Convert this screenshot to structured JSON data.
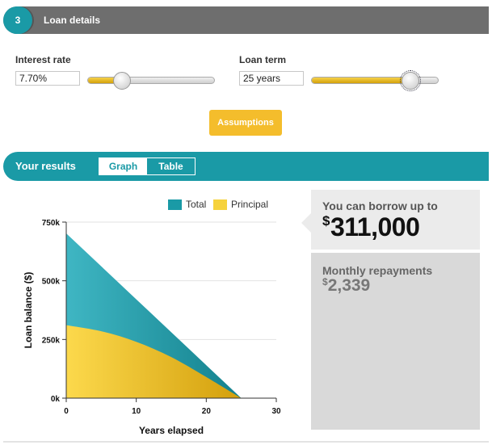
{
  "loan_details": {
    "step": "3",
    "title": "Loan details",
    "interest_rate": {
      "label": "Interest rate",
      "value": "7.70%",
      "slider_fraction": 0.27
    },
    "loan_term": {
      "label": "Loan term",
      "value": "25 years",
      "slider_fraction": 0.78
    },
    "assumptions_label": "Assumptions"
  },
  "results": {
    "title": "Your results",
    "tabs": [
      {
        "label": "Graph",
        "active": true
      },
      {
        "label": "Table",
        "active": false
      }
    ],
    "borrow": {
      "label": "You can borrow up to",
      "currency": "$",
      "amount": "311,000"
    },
    "repayments": {
      "label": "Monthly repayments",
      "currency": "$",
      "amount": "2,339"
    }
  },
  "colors": {
    "teal": "#1a9aa6",
    "gold": "#f4bd2c",
    "header_gray": "#6e6e6e"
  },
  "chart_data": {
    "type": "area",
    "xlabel": "Years elapsed",
    "ylabel": "Loan balance ($)",
    "xlim": [
      0,
      30
    ],
    "ylim": [
      0,
      750000
    ],
    "xticks": [
      0,
      10,
      20,
      30
    ],
    "yticks": [
      0,
      250000,
      500000,
      750000
    ],
    "ytick_labels": [
      "0k",
      "250k",
      "500k",
      "750k"
    ],
    "legend_position": "top",
    "grid": true,
    "x": [
      0,
      5,
      10,
      15,
      20,
      25
    ],
    "series": [
      {
        "name": "Total",
        "color": "#1a9aa6",
        "values": [
          702000,
          561600,
          421200,
          280800,
          140400,
          0
        ]
      },
      {
        "name": "Principal",
        "color": "#f4c72c",
        "values": [
          311000,
          285000,
          240000,
          175000,
          90000,
          0
        ]
      }
    ]
  }
}
